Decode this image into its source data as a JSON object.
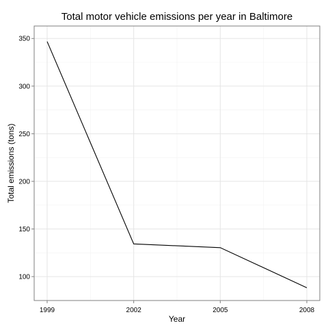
{
  "chart_data": {
    "type": "line",
    "title": "Total motor vehicle emissions per year in Baltimore",
    "xlabel": "Year",
    "ylabel": "Total emissions (tons)",
    "x": [
      1999,
      2002,
      2005,
      2008
    ],
    "series": [
      {
        "values": [
          346.8,
          134.3,
          130.4,
          88.3
        ]
      }
    ],
    "x_ticks": [
      1999,
      2002,
      2005,
      2008
    ],
    "y_ticks": [
      100,
      150,
      200,
      250,
      300,
      350
    ],
    "xlim": [
      1999,
      2008
    ],
    "ylim": [
      88,
      350
    ],
    "grid": true,
    "colors": {
      "background": "#ffffff",
      "panel_border": "#7f7f7f",
      "grid_major": "#e5e5e5",
      "grid_minor": "#f2f2f2",
      "line": "#000000"
    }
  }
}
